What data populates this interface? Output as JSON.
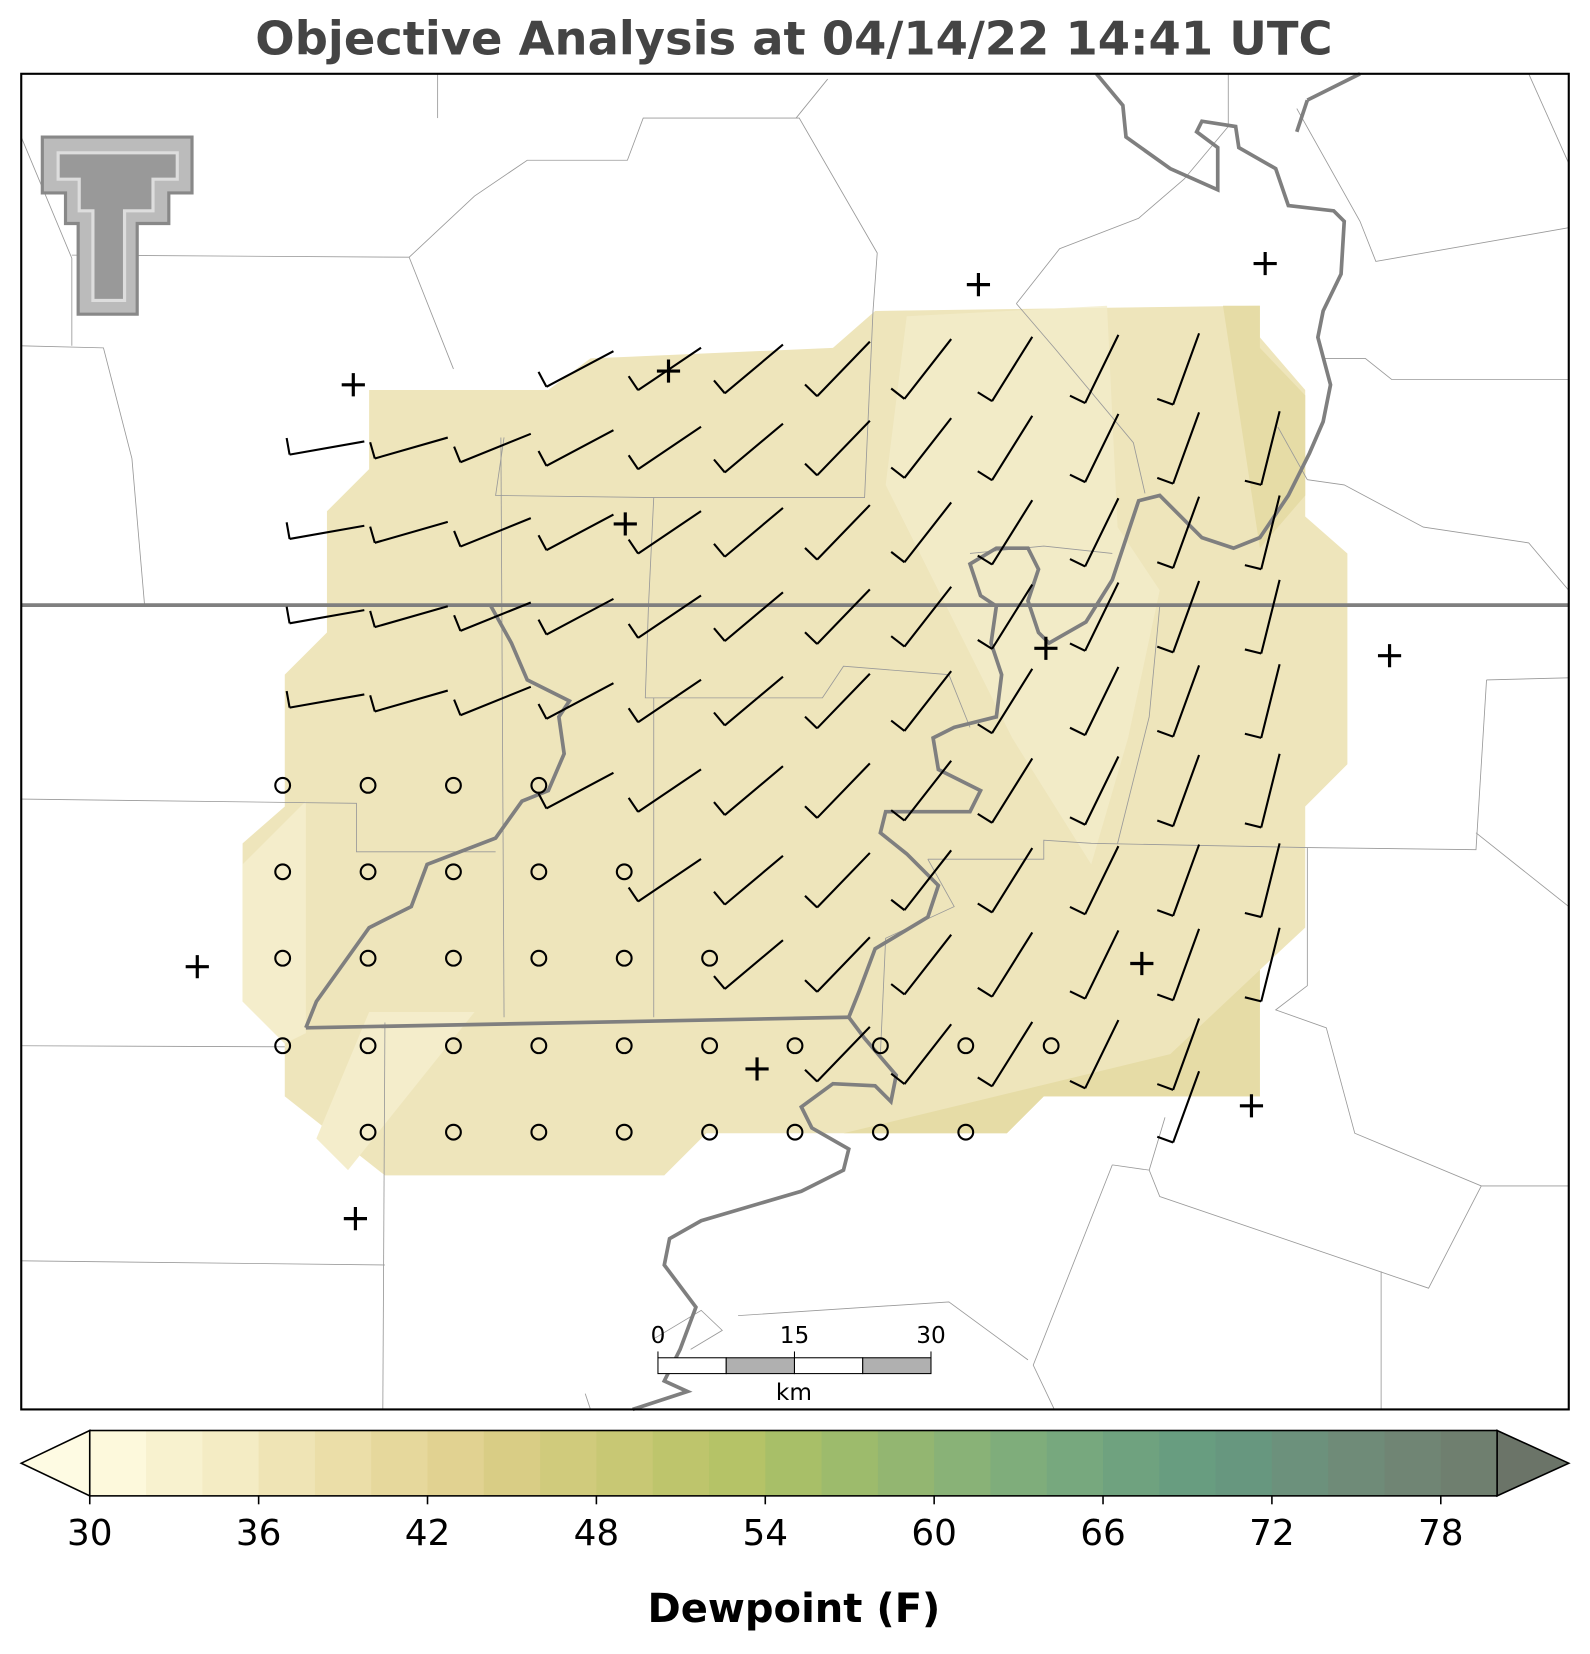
{
  "title": "Objective Analysis at 04/14/22 14:41 UTC",
  "colorbar": {
    "label": "Dewpoint (F)",
    "levels": [
      30,
      32,
      34,
      36,
      38,
      40,
      42,
      44,
      46,
      48,
      50,
      52,
      54,
      56,
      58,
      60,
      62,
      64,
      66,
      68,
      70,
      72,
      74,
      76,
      78,
      80
    ],
    "colors": [
      "#fdf9dc",
      "#f8f2cf",
      "#f4ecc4",
      "#efe4b5",
      "#ebdea8",
      "#e6d89c",
      "#e1d291",
      "#d9cd85",
      "#d0cb7c",
      "#c8c874",
      "#bec56c",
      "#b5c367",
      "#a8bf68",
      "#9dbb6c",
      "#93b671",
      "#89b277",
      "#7fad7b",
      "#77a87e",
      "#6fa27f",
      "#689d80",
      "#67977f",
      "#6c917c",
      "#6f8b78",
      "#708574",
      "#6f7f6f"
    ],
    "under_color": "#fefbe3",
    "over_color": "#6b7468",
    "ticks": [
      30,
      36,
      42,
      48,
      54,
      60,
      66,
      72,
      78
    ]
  },
  "scale_bar": {
    "ticks": [
      0,
      15,
      30
    ],
    "unit": "km"
  }
}
